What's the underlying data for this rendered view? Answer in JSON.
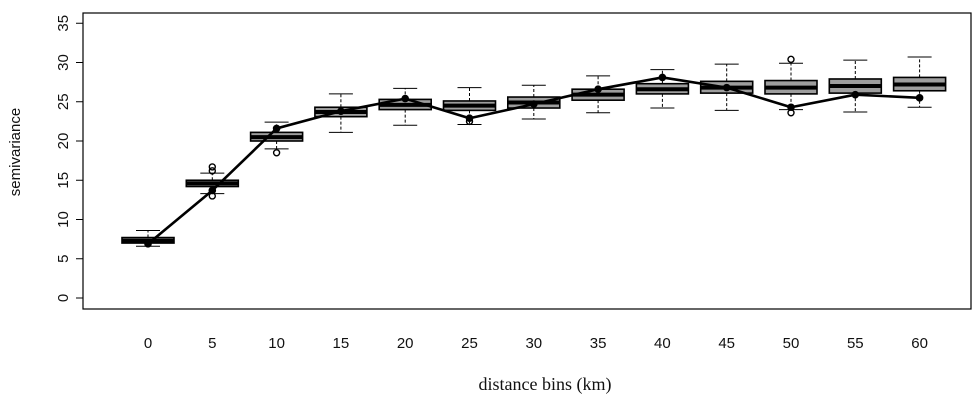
{
  "chart_data": {
    "type": "boxplot",
    "xlabel": "distance bins (km)",
    "ylabel": "semivariance",
    "ylim": [
      0,
      35
    ],
    "yticks": [
      0,
      5,
      10,
      15,
      20,
      25,
      30,
      35
    ],
    "categories": [
      "0",
      "5",
      "10",
      "15",
      "20",
      "25",
      "30",
      "35",
      "40",
      "45",
      "50",
      "55",
      "60"
    ],
    "boxes": [
      {
        "whisker_low": 6.6,
        "q1": 7.0,
        "median": 7.3,
        "q3": 7.7,
        "whisker_high": 8.6,
        "outliers": []
      },
      {
        "whisker_low": 13.3,
        "q1": 14.2,
        "median": 14.6,
        "q3": 15.0,
        "whisker_high": 15.9,
        "outliers": [
          13.0,
          16.2,
          16.7
        ]
      },
      {
        "whisker_low": 19.0,
        "q1": 20.0,
        "median": 20.5,
        "q3": 21.1,
        "whisker_high": 22.4,
        "outliers": [
          18.5
        ]
      },
      {
        "whisker_low": 21.1,
        "q1": 23.1,
        "median": 23.7,
        "q3": 24.3,
        "whisker_high": 26.0,
        "outliers": []
      },
      {
        "whisker_low": 22.0,
        "q1": 24.0,
        "median": 24.6,
        "q3": 25.3,
        "whisker_high": 26.7,
        "outliers": []
      },
      {
        "whisker_low": 22.1,
        "q1": 23.9,
        "median": 24.5,
        "q3": 25.1,
        "whisker_high": 26.8,
        "outliers": [
          22.5
        ]
      },
      {
        "whisker_low": 22.8,
        "q1": 24.2,
        "median": 24.9,
        "q3": 25.6,
        "whisker_high": 27.1,
        "outliers": []
      },
      {
        "whisker_low": 23.6,
        "q1": 25.2,
        "median": 25.9,
        "q3": 26.6,
        "whisker_high": 28.3,
        "outliers": []
      },
      {
        "whisker_low": 24.2,
        "q1": 26.0,
        "median": 26.6,
        "q3": 27.3,
        "whisker_high": 29.1,
        "outliers": []
      },
      {
        "whisker_low": 23.9,
        "q1": 26.1,
        "median": 26.8,
        "q3": 27.6,
        "whisker_high": 29.8,
        "outliers": []
      },
      {
        "whisker_low": 24.0,
        "q1": 26.0,
        "median": 26.8,
        "q3": 27.7,
        "whisker_high": 29.9,
        "outliers": [
          23.6,
          30.4
        ]
      },
      {
        "whisker_low": 23.7,
        "q1": 26.1,
        "median": 27.0,
        "q3": 27.9,
        "whisker_high": 30.3,
        "outliers": []
      },
      {
        "whisker_low": 24.3,
        "q1": 26.4,
        "median": 27.2,
        "q3": 28.1,
        "whisker_high": 30.7,
        "outliers": []
      }
    ],
    "line_values": [
      6.9,
      13.7,
      21.6,
      23.8,
      25.4,
      22.9,
      24.7,
      26.6,
      28.1,
      26.8,
      24.3,
      25.9,
      25.5
    ],
    "box_fill": "#9e9e9e",
    "line_color": "#000000"
  }
}
